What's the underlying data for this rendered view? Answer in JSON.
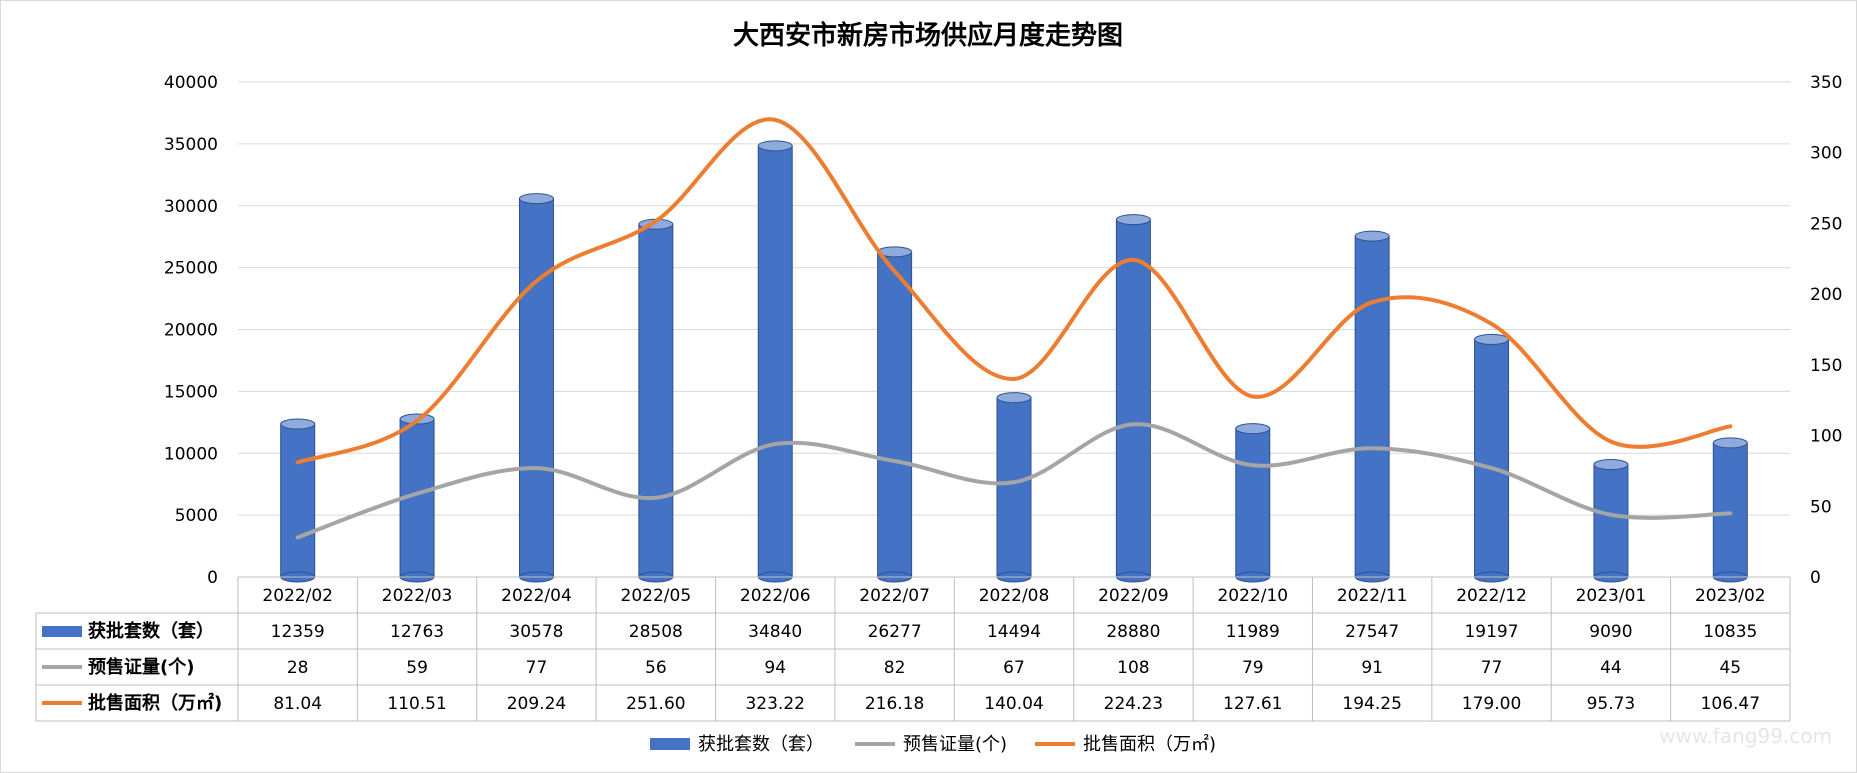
{
  "chart_data": {
    "type": "bar",
    "title": "大西安市新房市场供应月度走势图",
    "categories": [
      "2022/02",
      "2022/03",
      "2022/04",
      "2022/05",
      "2022/06",
      "2022/07",
      "2022/08",
      "2022/09",
      "2022/10",
      "2022/11",
      "2022/12",
      "2023/01",
      "2023/02"
    ],
    "y_left": {
      "ticks": [
        0,
        5000,
        10000,
        15000,
        20000,
        25000,
        30000,
        35000,
        40000
      ],
      "ylim": [
        0,
        40000
      ]
    },
    "y_right": {
      "ticks": [
        0,
        50,
        100,
        150,
        200,
        250,
        300,
        350
      ],
      "ylim": [
        0,
        350
      ]
    },
    "grid": true,
    "legend_position": "bottom",
    "series": [
      {
        "name": "获批套数（套）",
        "type": "bar",
        "axis": "left",
        "color": "#4472c4",
        "values": [
          12359,
          12763,
          30578,
          28508,
          34840,
          26277,
          14494,
          28880,
          11989,
          27547,
          19197,
          9090,
          10835
        ]
      },
      {
        "name": "预售证量(个)",
        "type": "line",
        "axis": "right",
        "color": "#a5a5a5",
        "values": [
          28,
          59,
          77,
          56,
          94,
          82,
          67,
          108,
          79,
          91,
          77,
          44,
          45
        ]
      },
      {
        "name": "批售面积（万㎡)",
        "type": "line",
        "axis": "right",
        "color": "#ed7d31",
        "values": [
          81.04,
          110.51,
          209.24,
          251.6,
          323.22,
          216.18,
          140.04,
          224.23,
          127.61,
          194.25,
          179.0,
          95.73,
          106.47
        ]
      }
    ],
    "table": {
      "header_row": [
        "2022/02",
        "2022/03",
        "2022/04",
        "2022/05",
        "2022/06",
        "2022/07",
        "2022/08",
        "2022/09",
        "2022/10",
        "2022/11",
        "2022/12",
        "2023/01",
        "2023/02"
      ],
      "rows": [
        {
          "label": "获批套数（套）",
          "cells": [
            "12359",
            "12763",
            "30578",
            "28508",
            "34840",
            "26277",
            "14494",
            "28880",
            "11989",
            "27547",
            "19197",
            "9090",
            "10835"
          ]
        },
        {
          "label": "预售证量(个)",
          "cells": [
            "28",
            "59",
            "77",
            "56",
            "94",
            "82",
            "67",
            "108",
            "79",
            "91",
            "77",
            "44",
            "45"
          ]
        },
        {
          "label": "批售面积（万㎡)",
          "cells": [
            "81.04",
            "110.51",
            "209.24",
            "251.60",
            "323.22",
            "216.18",
            "140.04",
            "224.23",
            "127.61",
            "194.25",
            "179.00",
            "95.73",
            "106.47"
          ]
        }
      ]
    }
  },
  "watermark": "www.fang99.com"
}
